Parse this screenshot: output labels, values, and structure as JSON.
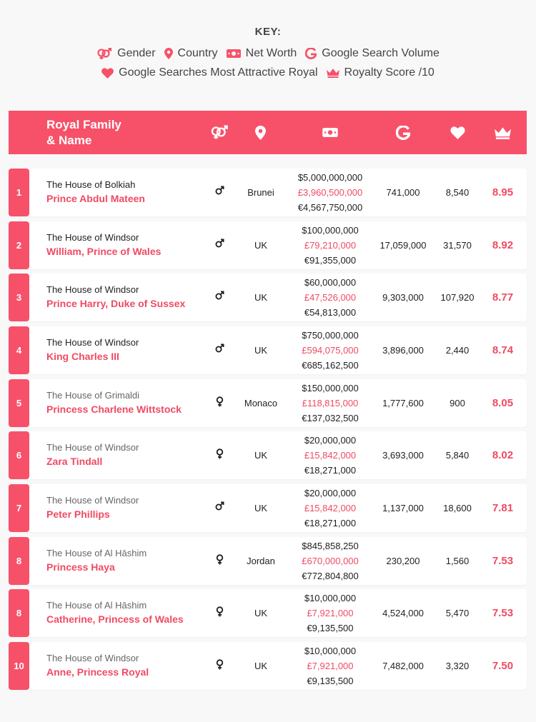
{
  "key": {
    "title": "KEY:",
    "gender": "Gender",
    "country": "Country",
    "net_worth": "Net Worth",
    "search_volume": "Google Search Volume",
    "attractive": "Google Searches Most Attractive Royal",
    "score": "Royalty Score /10"
  },
  "header": {
    "title_line1": "Royal Family",
    "title_line2": "& Name"
  },
  "colors": {
    "accent": "#f7516a",
    "accent_text": "#f04a63",
    "background": "#f8f8f8"
  },
  "chart_data": {
    "type": "table",
    "columns": [
      "Rank",
      "Royal Family & Name",
      "Gender",
      "Country",
      "Net Worth",
      "Google Search Volume",
      "Google Searches Most Attractive Royal",
      "Royalty Score /10"
    ],
    "rows": [
      {
        "rank": "1",
        "house": "The House of Bolkiah",
        "name": "Prince Abdul Mateen",
        "gender": "male",
        "country": "Brunei",
        "usd": "$5,000,000,000",
        "gbp": "£3,960,500,000",
        "eur": "€4,567,750,000",
        "search": "741,000",
        "attractive": "8,540",
        "score": "8.95"
      },
      {
        "rank": "2",
        "house": "The House of Windsor",
        "name": "William, Prince of Wales",
        "gender": "male",
        "country": "UK",
        "usd": "$100,000,000",
        "gbp": "£79,210,000",
        "eur": "€91,355,000",
        "search": "17,059,000",
        "attractive": "31,570",
        "score": "8.92"
      },
      {
        "rank": "3",
        "house": "The House of Windsor",
        "name": "Prince Harry, Duke of Sussex",
        "gender": "male",
        "country": "UK",
        "usd": "$60,000,000",
        "gbp": "£47,526,000",
        "eur": "€54,813,000",
        "search": "9,303,000",
        "attractive": "107,920",
        "score": "8.77"
      },
      {
        "rank": "4",
        "house": "The House of Windsor",
        "name": "King Charles III",
        "gender": "male",
        "country": "UK",
        "usd": "$750,000,000",
        "gbp": "£594,075,000",
        "eur": "€685,162,500",
        "search": "3,896,000",
        "attractive": "2,440",
        "score": "8.74"
      },
      {
        "rank": "5",
        "house": "The House of Grimaldi",
        "name": "Princess Charlene Wittstock",
        "gender": "female",
        "country": "Monaco",
        "usd": "$150,000,000",
        "gbp": "£118,815,000",
        "eur": "€137,032,500",
        "search": "1,777,600",
        "attractive": "900",
        "score": "8.05"
      },
      {
        "rank": "6",
        "house": "The House of Windsor",
        "name": "Zara Tindall",
        "gender": "female",
        "country": "UK",
        "usd": "$20,000,000",
        "gbp": "£15,842,000",
        "eur": "€18,271,000",
        "search": "3,693,000",
        "attractive": "5,840",
        "score": "8.02"
      },
      {
        "rank": "7",
        "house": "The House of Windsor",
        "name": "Peter Phillips",
        "gender": "male",
        "country": "UK",
        "usd": "$20,000,000",
        "gbp": "£15,842,000",
        "eur": "€18,271,000",
        "search": "1,137,000",
        "attractive": "18,600",
        "score": "7.81"
      },
      {
        "rank": "8",
        "house": "The House of Al Hāshim",
        "name": "Princess Haya",
        "gender": "female",
        "country": "Jordan",
        "usd": "$845,858,250",
        "gbp": "£670,000,000",
        "eur": "€772,804,800",
        "search": "230,200",
        "attractive": "1,560",
        "score": "7.53"
      },
      {
        "rank": "8",
        "house": "The House of Al Hāshim",
        "name": "Catherine, Princess of Wales",
        "gender": "female",
        "country": "UK",
        "usd": "$10,000,000",
        "gbp": "£7,921,000",
        "eur": "€9,135,500",
        "search": "4,524,000",
        "attractive": "5,470",
        "score": "7.53"
      },
      {
        "rank": "10",
        "house": "The House of Windsor",
        "name": "Anne, Princess Royal",
        "gender": "female",
        "country": "UK",
        "usd": "$10,000,000",
        "gbp": "£7,921,000",
        "eur": "€9,135,500",
        "search": "7,482,000",
        "attractive": "3,320",
        "score": "7.50"
      }
    ]
  }
}
